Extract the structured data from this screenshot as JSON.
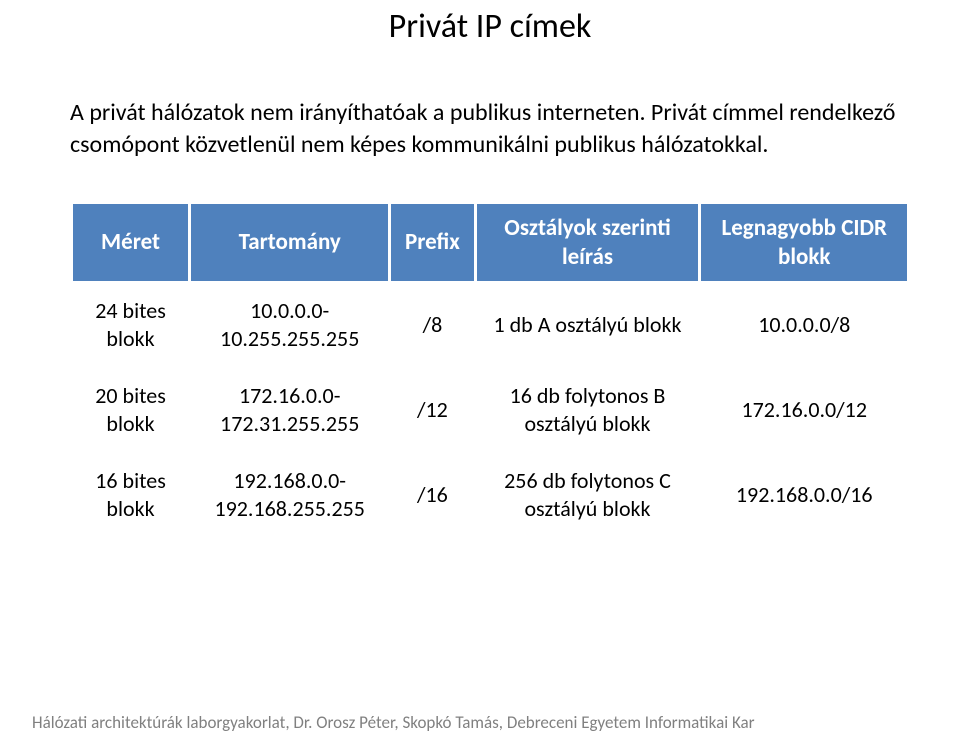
{
  "title": "Privát IP címek",
  "intro": "A privát hálózatok nem irányíthatóak a publikus interneten. Privát címmel rendelkező csomópont közvetlenül nem képes kommunikálni publikus hálózatokkal.",
  "table": {
    "header_bg": "#4f81bd",
    "header_fg": "#ffffff",
    "columns": [
      "Méret",
      "Tartomány",
      "Prefix",
      "Osztályok szerinti leírás",
      "Legnagyobb CIDR blokk"
    ],
    "rows": [
      [
        "24 bites blokk",
        "10.0.0.0-10.255.255.255",
        "/8",
        "1 db A osztályú blokk",
        "10.0.0.0/8"
      ],
      [
        "20 bites blokk",
        "172.16.0.0-172.31.255.255",
        "/12",
        "16 db folytonos B osztályú blokk",
        "172.16.0.0/12"
      ],
      [
        "16 bites blokk",
        "192.168.0.0-192.168.255.255",
        "/16",
        "256 db folytonos C osztályú blokk",
        "192.168.0.0/16"
      ]
    ]
  },
  "footer": "Hálózati architektúrák laborgyakorlat, Dr. Orosz Péter, Skopkó Tamás, Debreceni Egyetem Informatikai Kar"
}
